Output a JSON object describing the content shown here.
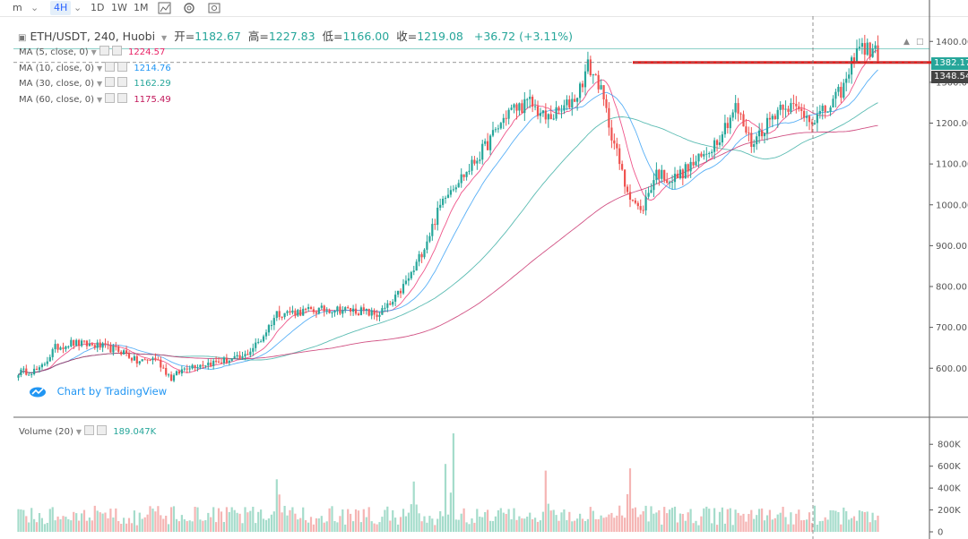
{
  "toolbar": {
    "items": [
      "m",
      "4H",
      "1D",
      "1W",
      "1M"
    ],
    "selected": "4H"
  },
  "legend": {
    "symbol": "ETH/USDT, 240, Huobi",
    "open_label": "开=",
    "open": "1182.67",
    "high_label": "高=",
    "high": "1227.83",
    "low_label": "低=",
    "low": "1166.00",
    "close_label": "收=",
    "close": "1219.08",
    "change": "+36.72 (+3.11%)"
  },
  "ma_rows": [
    {
      "label": "MA (5, close, 0)",
      "value": "1224.57",
      "color": "#e91e63"
    },
    {
      "label": "MA (10, close, 0)",
      "value": "1214.76",
      "color": "#2196f3"
    },
    {
      "label": "MA (30, close, 0)",
      "value": "1162.29",
      "color": "#26a69a"
    },
    {
      "label": "MA (60, close, 0)",
      "value": "1175.49",
      "color": "#c2185b"
    }
  ],
  "volume": {
    "label": "Volume (20)",
    "value": "189.047K"
  },
  "brand": "Chart by TradingView",
  "price_tags": [
    {
      "text": "1382.17",
      "color": "#26a69a"
    },
    {
      "text": "1348.54",
      "color": "#444444"
    }
  ],
  "colors": {
    "up": "#26a69a",
    "down": "#ef5350",
    "up_vol": "#a5dccb",
    "down_vol": "#f5b5b4",
    "resistance": "#e02020"
  },
  "chart_data": {
    "type": "candlestick",
    "title": "ETH/USDT, 240, Huobi",
    "price_axis": {
      "ticks": [
        "600.00",
        "700.00",
        "800.00",
        "900.00",
        "1000.00",
        "1100.00",
        "1200.00",
        "1300.00",
        "1400.00"
      ],
      "range": [
        480,
        1440
      ]
    },
    "volume_axis": {
      "ticks": [
        "0",
        "200K",
        "400K",
        "600K",
        "800K"
      ],
      "range": [
        0,
        900000
      ]
    },
    "resistance_level": 1348.54,
    "last_price": 1382.17,
    "anchors_close": [
      [
        0,
        590
      ],
      [
        8,
        595
      ],
      [
        14,
        650
      ],
      [
        20,
        662
      ],
      [
        30,
        655
      ],
      [
        40,
        640
      ],
      [
        45,
        615
      ],
      [
        52,
        625
      ],
      [
        58,
        575
      ],
      [
        64,
        605
      ],
      [
        75,
        615
      ],
      [
        85,
        625
      ],
      [
        92,
        670
      ],
      [
        98,
        735
      ],
      [
        110,
        740
      ],
      [
        120,
        745
      ],
      [
        130,
        740
      ],
      [
        136,
        730
      ],
      [
        142,
        760
      ],
      [
        150,
        840
      ],
      [
        156,
        930
      ],
      [
        162,
        1030
      ],
      [
        170,
        1080
      ],
      [
        178,
        1150
      ],
      [
        186,
        1230
      ],
      [
        194,
        1250
      ],
      [
        200,
        1210
      ],
      [
        206,
        1230
      ],
      [
        212,
        1270
      ],
      [
        216,
        1340
      ],
      [
        220,
        1300
      ],
      [
        224,
        1200
      ],
      [
        230,
        1050
      ],
      [
        236,
        980
      ],
      [
        242,
        1080
      ],
      [
        248,
        1060
      ],
      [
        254,
        1090
      ],
      [
        260,
        1120
      ],
      [
        266,
        1170
      ],
      [
        272,
        1240
      ],
      [
        278,
        1150
      ],
      [
        284,
        1200
      ],
      [
        290,
        1250
      ],
      [
        296,
        1230
      ],
      [
        302,
        1210
      ],
      [
        308,
        1240
      ],
      [
        314,
        1300
      ],
      [
        318,
        1390
      ],
      [
        322,
        1380
      ],
      [
        326,
        1370
      ]
    ],
    "volume_spikes": [
      {
        "index": 165,
        "volume": 900000,
        "up": false
      },
      {
        "index": 162,
        "volume": 620000,
        "up": true
      },
      {
        "index": 150,
        "volume": 460000,
        "up": true
      },
      {
        "index": 98,
        "volume": 480000,
        "up": true
      },
      {
        "index": 232,
        "volume": 580000,
        "up": false
      },
      {
        "index": 200,
        "volume": 560000,
        "up": false
      }
    ]
  }
}
